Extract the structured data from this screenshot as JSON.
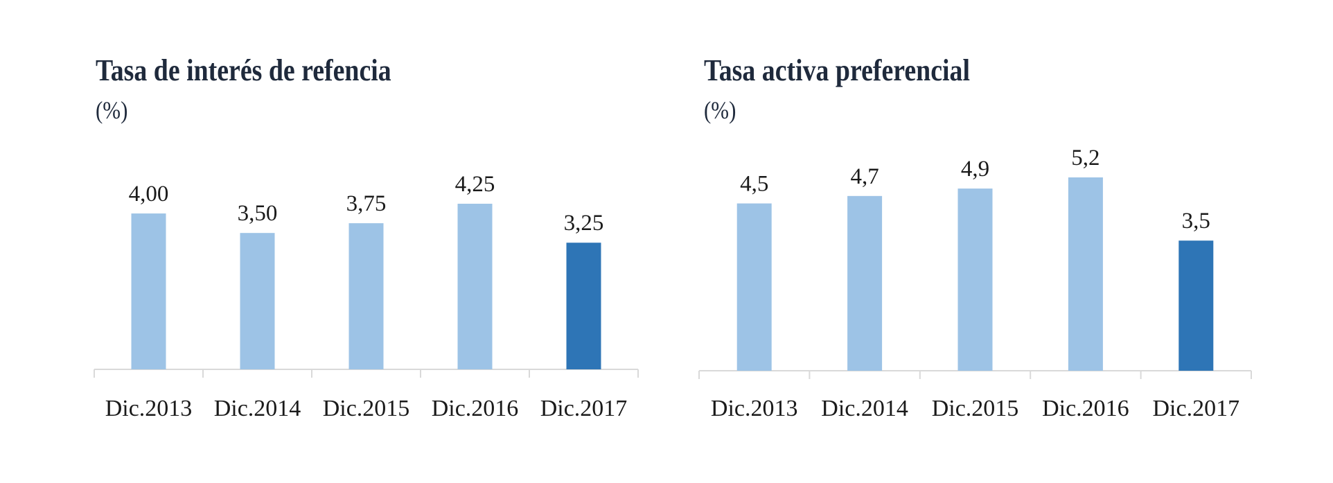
{
  "chart_data": [
    {
      "type": "bar",
      "title": "Tasa de interés de refencia",
      "subtitle": "(%)",
      "categories": [
        "Dic.2013",
        "Dic.2014",
        "Dic.2015",
        "Dic.2016",
        "Dic.2017"
      ],
      "values": [
        4.0,
        3.5,
        3.75,
        4.25,
        3.25
      ],
      "value_labels": [
        "4,00",
        "3,50",
        "3,75",
        "4,25",
        "3,25"
      ],
      "highlight_index": 4,
      "colors": {
        "default": "#9dc3e6",
        "highlight": "#2e75b6"
      },
      "ylim": [
        0,
        4.25
      ],
      "grid": false,
      "legend": "none"
    },
    {
      "type": "bar",
      "title": "Tasa activa preferencial",
      "subtitle": "(%)",
      "categories": [
        "Dic.2013",
        "Dic.2014",
        "Dic.2015",
        "Dic.2016",
        "Dic.2017"
      ],
      "values": [
        4.5,
        4.7,
        4.9,
        5.2,
        3.5
      ],
      "value_labels": [
        "4,5",
        "4,7",
        "4,9",
        "5,2",
        "3,5"
      ],
      "highlight_index": 4,
      "colors": {
        "default": "#9dc3e6",
        "highlight": "#2e75b6"
      },
      "ylim": [
        0,
        5.2
      ],
      "grid": false,
      "legend": "none"
    }
  ]
}
